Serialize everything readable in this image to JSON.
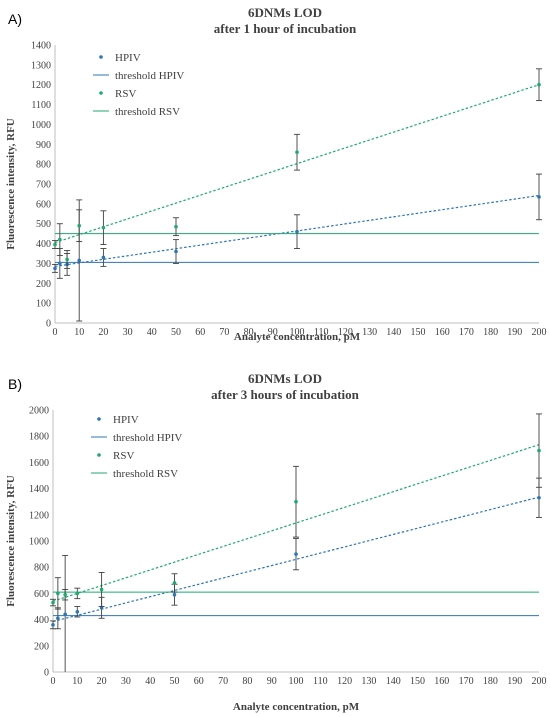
{
  "chart_data": [
    {
      "type": "scatter",
      "panel_label": "A)",
      "title": "6DNMs LOD",
      "subtitle": "after 1 hour of incubation",
      "xlabel": "Analyte concentration, pM",
      "ylabel": "Fluorescence intensity, RFU",
      "xlim": [
        0,
        200
      ],
      "ylim": [
        0,
        1400
      ],
      "xticks": [
        0,
        10,
        20,
        30,
        40,
        50,
        60,
        70,
        80,
        90,
        100,
        110,
        120,
        130,
        140,
        150,
        160,
        170,
        180,
        190,
        200
      ],
      "yticks": [
        0,
        100,
        200,
        300,
        400,
        500,
        600,
        700,
        800,
        900,
        1000,
        1100,
        1200,
        1300,
        1400
      ],
      "grid": false,
      "legend_position": "top-left",
      "legend": [
        "HPIV",
        "threshold HPIV",
        "RSV",
        "threshold RSV"
      ],
      "series": [
        {
          "name": "HPIV",
          "color": "#2e75b6",
          "x": [
            0,
            2,
            5,
            10,
            20,
            50,
            100,
            200
          ],
          "y": [
            275,
            300,
            295,
            315,
            330,
            360,
            460,
            635
          ],
          "err": [
            20,
            75,
            55,
            305,
            45,
            60,
            85,
            115
          ],
          "trend": [
            285,
            642
          ],
          "threshold": 305
        },
        {
          "name": "RSV",
          "color": "#1faa6e",
          "x": [
            0,
            2,
            5,
            10,
            20,
            50,
            100,
            200
          ],
          "y": [
            395,
            420,
            320,
            490,
            480,
            485,
            860,
            1200
          ],
          "err": [
            20,
            80,
            45,
            80,
            85,
            45,
            90,
            80
          ],
          "trend": [
            405,
            1200
          ],
          "threshold": 450
        }
      ]
    },
    {
      "type": "scatter",
      "panel_label": "B)",
      "title": "6DNMs LOD",
      "subtitle": "after 3 hours of incubation",
      "xlabel": "Analyte concentration, pM",
      "ylabel": "Fluorescence intensity, RFU",
      "xlim": [
        0,
        200
      ],
      "ylim": [
        0,
        2000
      ],
      "xticks": [
        0,
        10,
        20,
        30,
        40,
        50,
        60,
        70,
        80,
        90,
        100,
        110,
        120,
        130,
        140,
        150,
        160,
        170,
        180,
        190,
        200
      ],
      "yticks": [
        0,
        200,
        400,
        600,
        800,
        1000,
        1200,
        1400,
        1600,
        1800,
        2000
      ],
      "grid": false,
      "legend_position": "top-left",
      "legend": [
        "HPIV",
        "threshold HPIV",
        "RSV",
        "threshold RSV"
      ],
      "series": [
        {
          "name": "HPIV",
          "color": "#2e75b6",
          "x": [
            0,
            2,
            5,
            10,
            20,
            50,
            100,
            200
          ],
          "y": [
            360,
            410,
            440,
            460,
            490,
            590,
            900,
            1330
          ],
          "err": [
            30,
            80,
            450,
            40,
            80,
            80,
            120,
            150
          ],
          "trend": [
            385,
            1335
          ],
          "threshold": 430
        },
        {
          "name": "RSV",
          "color": "#1faa6e",
          "x": [
            0,
            2,
            5,
            10,
            20,
            50,
            100,
            200
          ],
          "y": [
            530,
            600,
            590,
            600,
            630,
            680,
            1300,
            1690
          ],
          "err": [
            25,
            120,
            40,
            40,
            130,
            70,
            270,
            280
          ],
          "trend": [
            540,
            1735
          ],
          "threshold": 610
        }
      ]
    }
  ]
}
